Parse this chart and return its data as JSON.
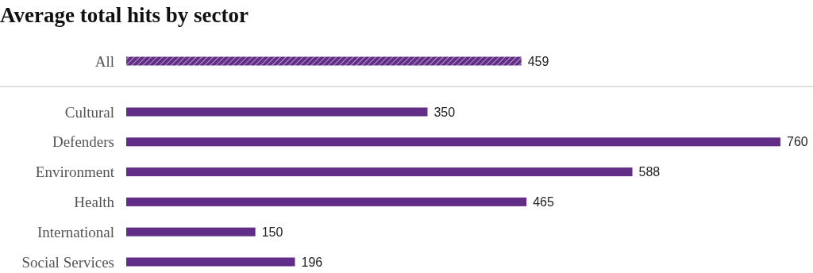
{
  "chart_data": {
    "type": "bar",
    "orientation": "horizontal",
    "title": "Average total hits by sector",
    "categories": [
      "All",
      "Cultural",
      "Defenders",
      "Environment",
      "Health",
      "International",
      "Social Services"
    ],
    "values": [
      459,
      350,
      760,
      588,
      465,
      150,
      196
    ],
    "color": "#622d87",
    "data_labels": true
  }
}
